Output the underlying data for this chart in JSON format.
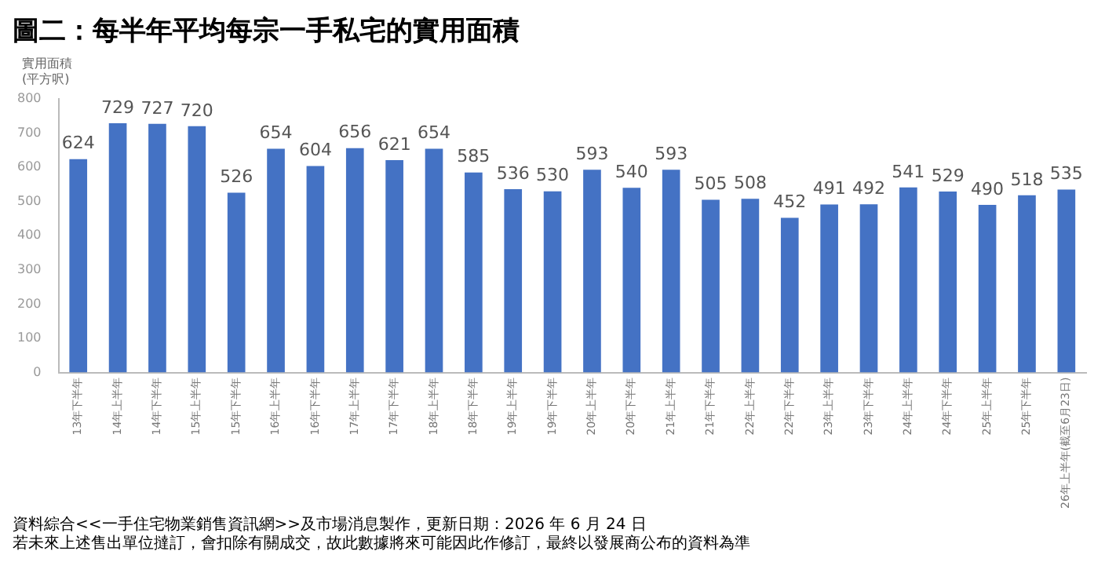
{
  "chart_data": {
    "type": "bar",
    "title": "圖二：每半年平均每宗一手私宅的實用面積",
    "ylabel": "實用面積\n(平方呎)",
    "categories": [
      "13年下半年",
      "14年上半年",
      "14年下半年",
      "15年上半年",
      "15年下半年",
      "16年上半年",
      "16年下半年",
      "17年上半年",
      "17年下半年",
      "18年上半年",
      "18年下半年",
      "19年上半年",
      "19年下半年",
      "20年上半年",
      "20年下半年",
      "21年上半年",
      "21年下半年",
      "22年上半年",
      "22年下半年",
      "23年上半年",
      "23年下半年",
      "24年上半年",
      "24年下半年",
      "25年上半年",
      "25年下半年",
      "26年上半年(截至6月23日)"
    ],
    "values": [
      624,
      729,
      727,
      720,
      526,
      654,
      604,
      656,
      621,
      654,
      585,
      536,
      530,
      593,
      540,
      593,
      505,
      508,
      452,
      491,
      492,
      541,
      529,
      490,
      518,
      535
    ],
    "color": "#4472c4",
    "ylim": [
      0,
      800
    ],
    "yticks": [
      0,
      100,
      200,
      300,
      400,
      500,
      600,
      700,
      800
    ],
    "grid": false,
    "data_labels": true,
    "legend": false,
    "annotations": [
      "資料綜合<<一手住宅物業銷售資訊網>>及市場消息製作，更新日期：2026 年 6 月 24 日",
      "若未來上述售出單位撻訂，會扣除有關成交，故此數據將來可能因此作修訂，最終以發展商公布的資料為準"
    ]
  }
}
